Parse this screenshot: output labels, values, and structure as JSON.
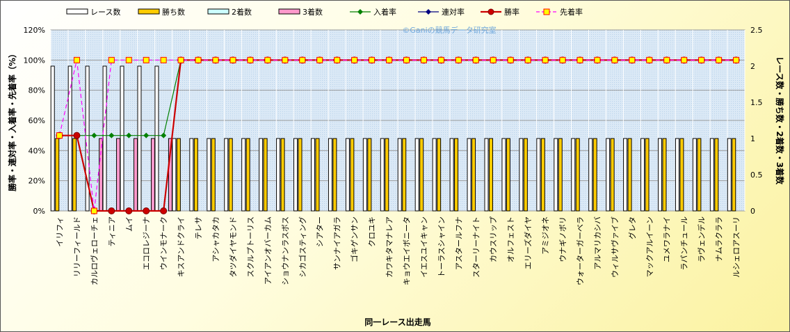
{
  "chart_data": {
    "type": "bar",
    "xlabel": "同一レース出走馬",
    "ylabel_left": "勝率・連対率・入着率・先着率（%）",
    "ylabel_right": "レース数・勝ち数・2着数・3着数",
    "watermark": "©Ganiの競馬データ研究室",
    "ylim_left": [
      0,
      120
    ],
    "ylim_right": [
      0,
      2.5
    ],
    "yticks_left": [
      "0%",
      "20%",
      "40%",
      "60%",
      "80%",
      "100%",
      "120%"
    ],
    "yticks_right": [
      "0",
      "0.5",
      "1",
      "1.5",
      "2",
      "2.5"
    ],
    "grid": true,
    "legend_position": "top",
    "categories": [
      "イリフィ",
      "リリーフィールド",
      "カルロヴェローチェ",
      "ティニア",
      "ムイ",
      "エコロレジーナ",
      "ウインモナーク",
      "キスアンドクライ",
      "テレサ",
      "アシャカタカ",
      "タツダイヤモンド",
      "スクルプトーリス",
      "アイアンオバーカム",
      "ショウナンラスボス",
      "シカゴスティング",
      "シアター",
      "サンナイアガラ",
      "ゴキゲンサン",
      "クロユキ",
      "カワキタマナレア",
      "キョウエイボニータ",
      "イエスユイキャン",
      "トーラスシャイン",
      "アスタールフナ",
      "スターリーナイト",
      "カウスリップ",
      "オルフェスト",
      "エリーズダイヤ",
      "アミジオネ",
      "ウナギノボリ",
      "ウォーターガーベラ",
      "アルマリカシバ",
      "ウィルサヴァイブ",
      "グレタ",
      "マックアルイーン",
      "ユメワラナイ",
      "ラパンチュール",
      "ラヴェンデル",
      "ナムラクララ",
      "ルシェロアスーリ"
    ],
    "series": [
      {
        "name": "レース数",
        "axis": "right",
        "kind": "bar",
        "color": "#ffffff",
        "values": [
          2,
          2,
          2,
          2,
          2,
          2,
          2,
          1,
          1,
          1,
          1,
          1,
          1,
          1,
          1,
          1,
          1,
          1,
          1,
          1,
          1,
          1,
          1,
          1,
          1,
          1,
          1,
          1,
          1,
          1,
          1,
          1,
          1,
          1,
          1,
          1,
          1,
          1,
          1,
          1
        ]
      },
      {
        "name": "勝ち数",
        "axis": "right",
        "kind": "bar",
        "color": "#ffcc00",
        "values": [
          1,
          1,
          0,
          0,
          0,
          0,
          0,
          1,
          1,
          1,
          1,
          1,
          1,
          1,
          1,
          1,
          1,
          1,
          1,
          1,
          1,
          1,
          1,
          1,
          1,
          1,
          1,
          1,
          1,
          1,
          1,
          1,
          1,
          1,
          1,
          1,
          1,
          1,
          1,
          1
        ]
      },
      {
        "name": "2着数",
        "axis": "right",
        "kind": "bar",
        "color": "#ccffff",
        "values": [
          0,
          0,
          0,
          0,
          0,
          0,
          0,
          0,
          0,
          0,
          0,
          0,
          0,
          0,
          0,
          0,
          0,
          0,
          0,
          0,
          0,
          0,
          0,
          0,
          0,
          0,
          0,
          0,
          0,
          0,
          0,
          0,
          0,
          0,
          0,
          0,
          0,
          0,
          0,
          0
        ]
      },
      {
        "name": "3着数",
        "axis": "right",
        "kind": "bar",
        "color": "#ff99cc",
        "values": [
          0,
          0,
          1,
          1,
          1,
          1,
          1,
          0,
          0,
          0,
          0,
          0,
          0,
          0,
          0,
          0,
          0,
          0,
          0,
          0,
          0,
          0,
          0,
          0,
          0,
          0,
          0,
          0,
          0,
          0,
          0,
          0,
          0,
          0,
          0,
          0,
          0,
          0,
          0,
          0
        ]
      },
      {
        "name": "入着率",
        "axis": "left",
        "kind": "line",
        "color": "#008000",
        "values": [
          50,
          50,
          50,
          50,
          50,
          50,
          50,
          100,
          100,
          100,
          100,
          100,
          100,
          100,
          100,
          100,
          100,
          100,
          100,
          100,
          100,
          100,
          100,
          100,
          100,
          100,
          100,
          100,
          100,
          100,
          100,
          100,
          100,
          100,
          100,
          100,
          100,
          100,
          100,
          100
        ]
      },
      {
        "name": "連対率",
        "axis": "left",
        "kind": "line",
        "color": "#000080",
        "values": [
          50,
          50,
          0,
          0,
          0,
          0,
          0,
          100,
          100,
          100,
          100,
          100,
          100,
          100,
          100,
          100,
          100,
          100,
          100,
          100,
          100,
          100,
          100,
          100,
          100,
          100,
          100,
          100,
          100,
          100,
          100,
          100,
          100,
          100,
          100,
          100,
          100,
          100,
          100,
          100
        ]
      },
      {
        "name": "勝率",
        "axis": "left",
        "kind": "line",
        "color": "#cc0000",
        "values": [
          50,
          50,
          0,
          0,
          0,
          0,
          0,
          100,
          100,
          100,
          100,
          100,
          100,
          100,
          100,
          100,
          100,
          100,
          100,
          100,
          100,
          100,
          100,
          100,
          100,
          100,
          100,
          100,
          100,
          100,
          100,
          100,
          100,
          100,
          100,
          100,
          100,
          100,
          100,
          100
        ]
      },
      {
        "name": "先着率",
        "axis": "left",
        "kind": "dashed-line",
        "color": "#ff00ff",
        "values": [
          50,
          100,
          0,
          100,
          100,
          100,
          100,
          100,
          100,
          100,
          100,
          100,
          100,
          100,
          100,
          100,
          100,
          100,
          100,
          100,
          100,
          100,
          100,
          100,
          100,
          100,
          100,
          100,
          100,
          100,
          100,
          100,
          100,
          100,
          100,
          100,
          100,
          100,
          100,
          100
        ]
      }
    ]
  }
}
